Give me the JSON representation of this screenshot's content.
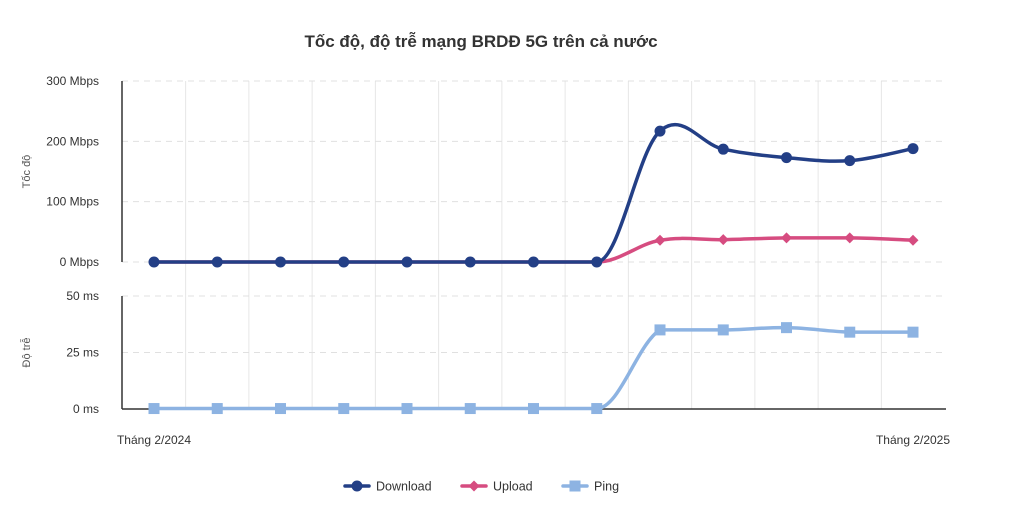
{
  "chart_data": {
    "type": "line",
    "title": "Tốc độ, độ trễ mạng BRDĐ 5G trên cả nước",
    "x": [
      "Tháng 2/2024",
      "",
      "",
      "",
      "",
      "",
      "",
      "",
      "",
      "",
      "",
      "",
      "Tháng 2/2025"
    ],
    "panels": [
      {
        "ylabel": "Tốc độ",
        "ylim": [
          0,
          300
        ],
        "yticks": [
          "0 Mbps",
          "100 Mbps",
          "200 Mbps",
          "300 Mbps"
        ],
        "ytick_values": [
          0,
          100,
          200,
          300
        ],
        "series": [
          {
            "name": "Download",
            "color": "#233f86",
            "marker": "circle",
            "values": [
              0,
              0,
              0,
              0,
              0,
              0,
              0,
              0,
              217,
              187,
              173,
              168,
              188
            ]
          },
          {
            "name": "Upload",
            "color": "#d64c80",
            "marker": "diamond",
            "values": [
              0,
              0,
              0,
              0,
              0,
              0,
              0,
              0,
              36,
              37,
              40,
              40,
              36
            ]
          }
        ]
      },
      {
        "ylabel": "Độ trễ",
        "ylim": [
          0,
          50
        ],
        "yticks": [
          "0 ms",
          "25 ms",
          "50 ms"
        ],
        "ytick_values": [
          0,
          25,
          50
        ],
        "series": [
          {
            "name": "Ping",
            "color": "#8db3e2",
            "marker": "square",
            "values": [
              0.2,
              0.2,
              0.2,
              0.2,
              0.2,
              0.2,
              0.2,
              0.2,
              35,
              35,
              36,
              34,
              34
            ]
          }
        ]
      }
    ],
    "xtick_labels": {
      "first": "Tháng 2/2024",
      "last": "Tháng 2/2025"
    },
    "legend": [
      "Download",
      "Upload",
      "Ping"
    ],
    "legend_position": "bottom-center",
    "grid": true
  }
}
